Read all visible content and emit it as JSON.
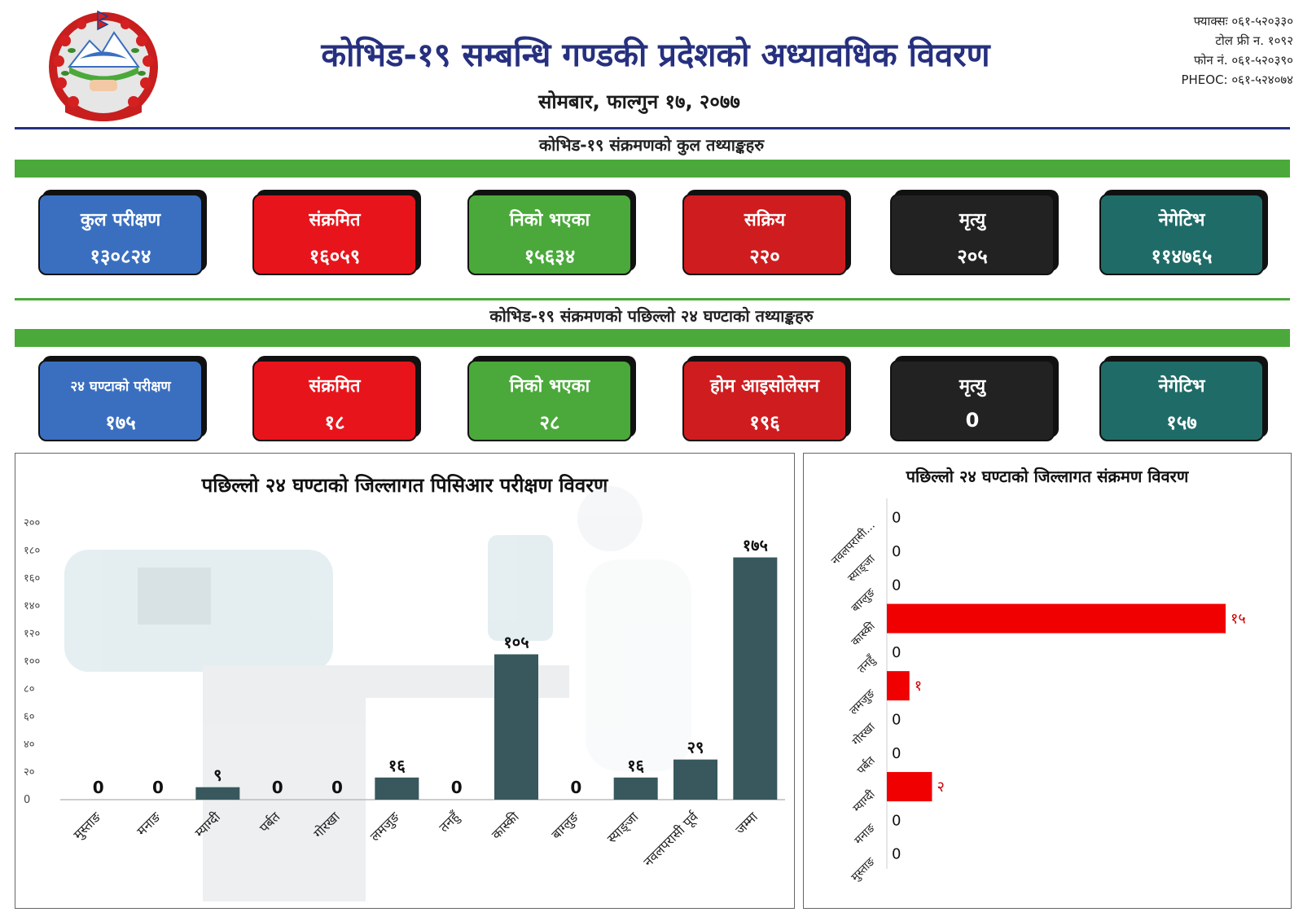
{
  "header": {
    "title": "कोभिड-१९ सम्बन्धि गण्डकी प्रदेशको अध्यावधिक विवरण",
    "date": "सोमबार, फाल्गुन १७, २०७७",
    "contact": [
      "फ्याक्सः ०६१-५२०३३०",
      "टोल फ्री न. १०९२",
      "फोन नं. ०६१-५२०३९०",
      "PHEOC: ०६१-५२४०७४"
    ]
  },
  "sections": {
    "total_title": "कोभिड-१९ संक्रमणको कुल तथ्याङ्कहरु",
    "last24_title": "कोभिड-१९ संक्रमणको पछिल्लो २४ घण्टाको तथ्याङ्कहरु"
  },
  "colors": {
    "blue": "#3a6fc0",
    "red": "#e8141b",
    "green": "#4aa93a",
    "darkred": "#cf1c1f",
    "black": "#222222",
    "teal": "#1f6b67",
    "bar_dark": "#38585d",
    "bar_red": "#f00000"
  },
  "total_cards": [
    {
      "label": "कुल परीक्षण",
      "value": "१३०८२४",
      "color": "#3a6fc0"
    },
    {
      "label": "संक्रमित",
      "value": "१६०५९",
      "color": "#e8141b"
    },
    {
      "label": "निको भएका",
      "value": "१५६३४",
      "color": "#4aa93a"
    },
    {
      "label": "सक्रिय",
      "value": "२२०",
      "color": "#cf1c1f"
    },
    {
      "label": "मृत्यु",
      "value": "२०५",
      "color": "#222222"
    },
    {
      "label": "नेगेटिभ",
      "value": "११४७६५",
      "color": "#1f6b67"
    }
  ],
  "last24_cards": [
    {
      "label": "२४ घण्टाको परीक्षण",
      "value": "१७५",
      "color": "#3a6fc0"
    },
    {
      "label": "संक्रमित",
      "value": "१८",
      "color": "#e8141b"
    },
    {
      "label": "निको भएका",
      "value": "२८",
      "color": "#4aa93a"
    },
    {
      "label": "होम आइसोलेसन",
      "value": "१९६",
      "color": "#cf1c1f"
    },
    {
      "label": "मृत्यु",
      "value": "0",
      "color": "#222222"
    },
    {
      "label": "नेगेटिभ",
      "value": "१५७",
      "color": "#1f6b67"
    }
  ],
  "chart_data": [
    {
      "type": "bar",
      "title": "पछिल्लो २४ घण्टाको जिल्लागत पिसिआर परीक्षण विवरण",
      "categories": [
        "मुस्ताङ",
        "मनाङ",
        "म्याग्दी",
        "पर्बत",
        "गोरखा",
        "लमजुङ",
        "तनहुँ",
        "कास्की",
        "बाग्लुङ",
        "स्याङ्जा",
        "नवलपरासी पूर्व",
        "जम्मा"
      ],
      "values": [
        0,
        0,
        9,
        0,
        0,
        16,
        0,
        105,
        0,
        16,
        29,
        175
      ],
      "value_labels": [
        "0",
        "0",
        "९",
        "0",
        "0",
        "१६",
        "0",
        "१०५",
        "0",
        "१६",
        "२९",
        "१७५"
      ],
      "ylim": [
        0,
        200
      ],
      "yticks": [
        0,
        20,
        40,
        60,
        80,
        100,
        120,
        140,
        160,
        180,
        200
      ],
      "ytick_labels": [
        "0",
        "२०",
        "४०",
        "६०",
        "८०",
        "१००",
        "१२०",
        "१४०",
        "१६०",
        "१८०",
        "२००"
      ],
      "grid": false,
      "orientation": "vertical"
    },
    {
      "type": "bar",
      "title": "पछिल्लो २४ घण्टाको जिल्लागत संक्रमण विवरण",
      "categories": [
        "नवलपरासी...",
        "स्याङ्जा",
        "बाग्लुङ",
        "कास्की",
        "तनहुँ",
        "लमजुङ",
        "गोरखा",
        "पर्बत",
        "म्याग्दी",
        "मनाङ",
        "मुस्ताङ"
      ],
      "values": [
        0,
        0,
        0,
        15,
        0,
        1,
        0,
        0,
        2,
        0,
        0
      ],
      "value_labels": [
        "0",
        "0",
        "0",
        "१५",
        "0",
        "१",
        "0",
        "0",
        "२",
        "0",
        "0"
      ],
      "grid": false,
      "orientation": "horizontal"
    }
  ]
}
